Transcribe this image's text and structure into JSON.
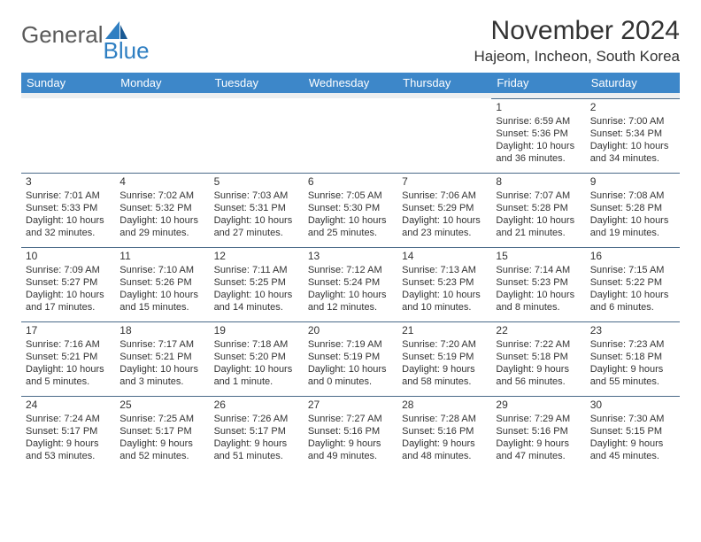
{
  "logo": {
    "general": "General",
    "blue": "Blue"
  },
  "title": "November 2024",
  "location": "Hajeom, Incheon, South Korea",
  "colors": {
    "header_bg": "#3d87c9",
    "header_text": "#ffffff",
    "spacer_bg": "#eceff1",
    "row_border": "#4a6a88",
    "logo_gray": "#5a5a5a",
    "logo_blue": "#2f7fc2"
  },
  "daynames": [
    "Sunday",
    "Monday",
    "Tuesday",
    "Wednesday",
    "Thursday",
    "Friday",
    "Saturday"
  ],
  "weeks": [
    [
      null,
      null,
      null,
      null,
      null,
      {
        "n": "1",
        "sr": "6:59 AM",
        "ss": "5:36 PM",
        "dl": "10 hours and 36 minutes."
      },
      {
        "n": "2",
        "sr": "7:00 AM",
        "ss": "5:34 PM",
        "dl": "10 hours and 34 minutes."
      }
    ],
    [
      {
        "n": "3",
        "sr": "7:01 AM",
        "ss": "5:33 PM",
        "dl": "10 hours and 32 minutes."
      },
      {
        "n": "4",
        "sr": "7:02 AM",
        "ss": "5:32 PM",
        "dl": "10 hours and 29 minutes."
      },
      {
        "n": "5",
        "sr": "7:03 AM",
        "ss": "5:31 PM",
        "dl": "10 hours and 27 minutes."
      },
      {
        "n": "6",
        "sr": "7:05 AM",
        "ss": "5:30 PM",
        "dl": "10 hours and 25 minutes."
      },
      {
        "n": "7",
        "sr": "7:06 AM",
        "ss": "5:29 PM",
        "dl": "10 hours and 23 minutes."
      },
      {
        "n": "8",
        "sr": "7:07 AM",
        "ss": "5:28 PM",
        "dl": "10 hours and 21 minutes."
      },
      {
        "n": "9",
        "sr": "7:08 AM",
        "ss": "5:28 PM",
        "dl": "10 hours and 19 minutes."
      }
    ],
    [
      {
        "n": "10",
        "sr": "7:09 AM",
        "ss": "5:27 PM",
        "dl": "10 hours and 17 minutes."
      },
      {
        "n": "11",
        "sr": "7:10 AM",
        "ss": "5:26 PM",
        "dl": "10 hours and 15 minutes."
      },
      {
        "n": "12",
        "sr": "7:11 AM",
        "ss": "5:25 PM",
        "dl": "10 hours and 14 minutes."
      },
      {
        "n": "13",
        "sr": "7:12 AM",
        "ss": "5:24 PM",
        "dl": "10 hours and 12 minutes."
      },
      {
        "n": "14",
        "sr": "7:13 AM",
        "ss": "5:23 PM",
        "dl": "10 hours and 10 minutes."
      },
      {
        "n": "15",
        "sr": "7:14 AM",
        "ss": "5:23 PM",
        "dl": "10 hours and 8 minutes."
      },
      {
        "n": "16",
        "sr": "7:15 AM",
        "ss": "5:22 PM",
        "dl": "10 hours and 6 minutes."
      }
    ],
    [
      {
        "n": "17",
        "sr": "7:16 AM",
        "ss": "5:21 PM",
        "dl": "10 hours and 5 minutes."
      },
      {
        "n": "18",
        "sr": "7:17 AM",
        "ss": "5:21 PM",
        "dl": "10 hours and 3 minutes."
      },
      {
        "n": "19",
        "sr": "7:18 AM",
        "ss": "5:20 PM",
        "dl": "10 hours and 1 minute."
      },
      {
        "n": "20",
        "sr": "7:19 AM",
        "ss": "5:19 PM",
        "dl": "10 hours and 0 minutes."
      },
      {
        "n": "21",
        "sr": "7:20 AM",
        "ss": "5:19 PM",
        "dl": "9 hours and 58 minutes."
      },
      {
        "n": "22",
        "sr": "7:22 AM",
        "ss": "5:18 PM",
        "dl": "9 hours and 56 minutes."
      },
      {
        "n": "23",
        "sr": "7:23 AM",
        "ss": "5:18 PM",
        "dl": "9 hours and 55 minutes."
      }
    ],
    [
      {
        "n": "24",
        "sr": "7:24 AM",
        "ss": "5:17 PM",
        "dl": "9 hours and 53 minutes."
      },
      {
        "n": "25",
        "sr": "7:25 AM",
        "ss": "5:17 PM",
        "dl": "9 hours and 52 minutes."
      },
      {
        "n": "26",
        "sr": "7:26 AM",
        "ss": "5:17 PM",
        "dl": "9 hours and 51 minutes."
      },
      {
        "n": "27",
        "sr": "7:27 AM",
        "ss": "5:16 PM",
        "dl": "9 hours and 49 minutes."
      },
      {
        "n": "28",
        "sr": "7:28 AM",
        "ss": "5:16 PM",
        "dl": "9 hours and 48 minutes."
      },
      {
        "n": "29",
        "sr": "7:29 AM",
        "ss": "5:16 PM",
        "dl": "9 hours and 47 minutes."
      },
      {
        "n": "30",
        "sr": "7:30 AM",
        "ss": "5:15 PM",
        "dl": "9 hours and 45 minutes."
      }
    ]
  ],
  "labels": {
    "sunrise": "Sunrise:",
    "sunset": "Sunset:",
    "daylight": "Daylight:"
  }
}
